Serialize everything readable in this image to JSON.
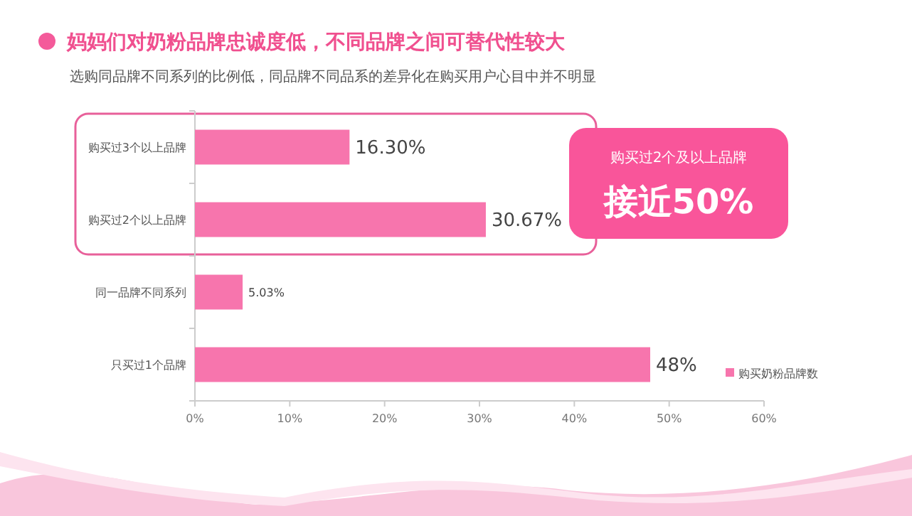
{
  "chart_data": {
    "type": "bar",
    "orientation": "horizontal",
    "title": "妈妈们对奶粉品牌忠诚度低，不同品牌之间可替代性较大",
    "subtitle": "选购同品牌不同系列的比例低，同品牌不同品系的差异化在购买用户心目中并不明显",
    "categories": [
      "购买过3个以上品牌",
      "购买过2个以上品牌",
      "同一品牌不同系列",
      "只买过1个品牌"
    ],
    "series": [
      {
        "name": "购买奶粉品牌数",
        "color": "#f775ad",
        "values": [
          16.3,
          30.67,
          5.03,
          48
        ],
        "value_labels": [
          "16.30%",
          "30.67%",
          "5.03%",
          "48%"
        ]
      }
    ],
    "xlim": [
      0,
      60
    ],
    "xticks": [
      {
        "value": 0,
        "label": "0%"
      },
      {
        "value": 10,
        "label": "10%"
      },
      {
        "value": 20,
        "label": "20%"
      },
      {
        "value": 30,
        "label": "30%"
      },
      {
        "value": 40,
        "label": "40%"
      },
      {
        "value": 50,
        "label": "50%"
      },
      {
        "value": 60,
        "label": "60%"
      }
    ],
    "grid": false,
    "legend": "bottom right",
    "annotations": [
      "购买过2个及以上品牌",
      "接近50%"
    ]
  }
}
